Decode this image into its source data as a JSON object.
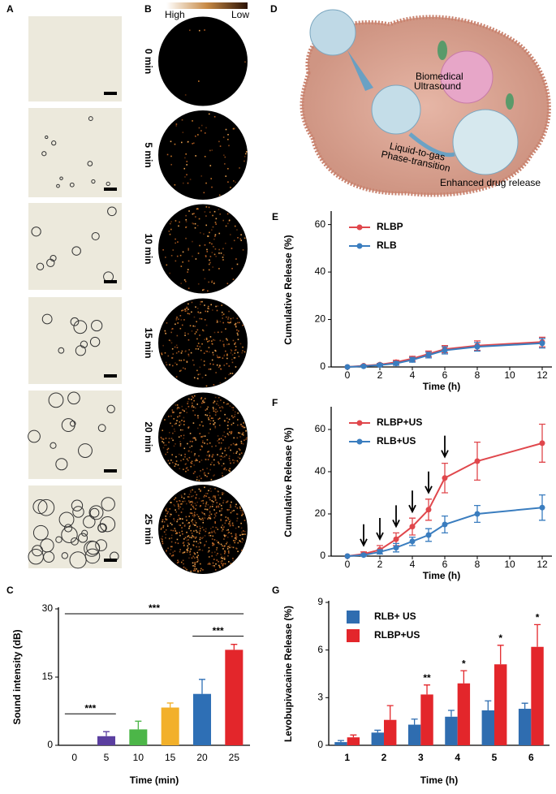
{
  "panel_labels": [
    "A",
    "B",
    "C",
    "D",
    "E",
    "F",
    "G"
  ],
  "panel_b": {
    "scale_high": "High",
    "scale_low": "Low",
    "times": [
      "0 min",
      "5 min",
      "10 min",
      "15 min",
      "20 min",
      "25 min"
    ]
  },
  "panel_d": {
    "ultrasound_label": [
      "Biomedical",
      "Ultrasound"
    ],
    "transition_label": [
      "Liquid-to-gas",
      "Phase-transition"
    ],
    "release_label": "Enhanced drug release"
  },
  "chart_data": [
    {
      "type": "bar",
      "categories": [
        "0",
        "5",
        "10",
        "15",
        "20",
        "25"
      ],
      "values": [
        0,
        2,
        3.5,
        8.3,
        11.3,
        21
      ],
      "errors": [
        0,
        1,
        1.8,
        1,
        3.2,
        1.2
      ],
      "colors": [
        "#5b3fa0",
        "#5b3fa0",
        "#4cb648",
        "#f2b02a",
        "#2e6fb5",
        "#e3262b"
      ],
      "ylim": [
        0,
        30
      ],
      "yticks": [
        0,
        15,
        30
      ],
      "xlabel": "Time (min)",
      "ylabel": "Sound intensity (dB)",
      "annotations": [
        "***",
        "***",
        "***"
      ]
    },
    {
      "type": "line",
      "x": [
        0,
        1,
        2,
        3,
        4,
        5,
        6,
        8,
        12
      ],
      "series": [
        {
          "name": "RLBP",
          "color": "#e0474c",
          "values": [
            0,
            0.5,
            1,
            2,
            3.5,
            5.5,
            7.5,
            9,
            10.5
          ],
          "errors": [
            0,
            0.3,
            0.5,
            0.8,
            1,
            1.2,
            1.5,
            2,
            2
          ]
        },
        {
          "name": "RLB",
          "color": "#3a7dbf",
          "values": [
            0,
            0.3,
            0.8,
            1.5,
            3,
            5,
            7,
            8.5,
            10
          ],
          "errors": [
            0,
            0.3,
            0.5,
            0.8,
            1,
            1.2,
            1.5,
            1.8,
            2
          ]
        }
      ],
      "xlim": [
        -1,
        12.6
      ],
      "xticks": [
        0,
        2,
        4,
        6,
        8,
        10,
        12
      ],
      "ylim": [
        0,
        65
      ],
      "yticks": [
        0,
        20,
        40,
        60
      ],
      "xlabel": "Time (h)",
      "ylabel": "Cumulative Release (%)",
      "legend": "upper left"
    },
    {
      "type": "line",
      "x": [
        0,
        1,
        2,
        3,
        4,
        5,
        6,
        8,
        12
      ],
      "series": [
        {
          "name": "RLBP+US",
          "color": "#e0474c",
          "values": [
            0,
            1,
            3,
            8,
            14,
            22,
            37,
            45,
            53.5
          ],
          "errors": [
            0,
            1,
            2,
            3,
            4,
            5,
            7,
            9,
            9
          ]
        },
        {
          "name": "RLB+US",
          "color": "#3a7dbf",
          "values": [
            0,
            0.5,
            2,
            4,
            7,
            10,
            15,
            20,
            23
          ],
          "errors": [
            0,
            0.5,
            1,
            2,
            2,
            3,
            4,
            4,
            6
          ]
        }
      ],
      "arrows": [
        1,
        2,
        3,
        4,
        5,
        6
      ],
      "xlim": [
        -1,
        12.6
      ],
      "xticks": [
        0,
        2,
        4,
        6,
        8,
        10,
        12
      ],
      "ylim": [
        0,
        70
      ],
      "yticks": [
        0,
        20,
        40,
        60
      ],
      "xlabel": "Time (h)",
      "ylabel": "Cumulative Release (%)",
      "legend": "upper left"
    },
    {
      "type": "groupedbar",
      "categories": [
        "1",
        "2",
        "3",
        "4",
        "5",
        "6"
      ],
      "series": [
        {
          "name": "RLB+ US",
          "color": "#2f6db0",
          "values": [
            0.2,
            0.8,
            1.3,
            1.8,
            2.2,
            2.3
          ],
          "errors": [
            0.1,
            0.15,
            0.35,
            0.4,
            0.6,
            0.35
          ]
        },
        {
          "name": "RLBP+US",
          "color": "#e3262b",
          "values": [
            0.5,
            1.6,
            3.2,
            3.9,
            5.1,
            6.2
          ],
          "errors": [
            0.15,
            0.9,
            0.6,
            0.8,
            1.2,
            1.4
          ]
        }
      ],
      "significance": [
        null,
        null,
        "**",
        "*",
        "*",
        "*"
      ],
      "ylim": [
        0,
        9
      ],
      "yticks": [
        0,
        3,
        6,
        9
      ],
      "xlabel": "Time  (h)",
      "ylabel": "Levobupivacaine Release (%)",
      "legend": "upper left"
    }
  ]
}
